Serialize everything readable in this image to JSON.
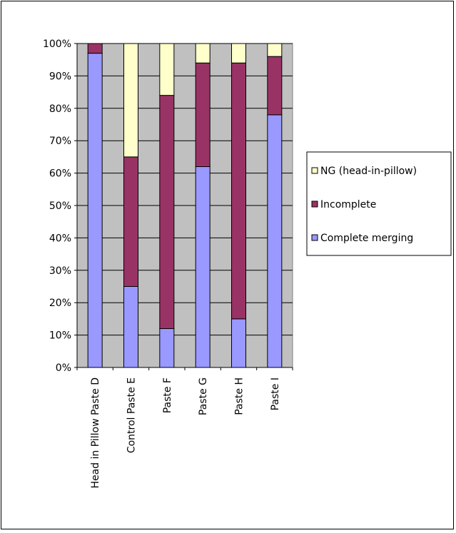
{
  "chart_data": {
    "type": "bar",
    "stacked": true,
    "percent_stacked": true,
    "title": "",
    "xlabel": "",
    "ylabel": "",
    "categories": [
      "Head in Pillow Paste D",
      "Control Paste E",
      "Paste F",
      "Paste G",
      "Paste H",
      "Paste I"
    ],
    "series": [
      {
        "name": "Complete merging",
        "color": "#9999ff",
        "values": [
          97,
          25,
          12,
          62,
          15,
          78
        ]
      },
      {
        "name": "Incomplete",
        "color": "#993366",
        "values": [
          3,
          40,
          72,
          32,
          79,
          18
        ]
      },
      {
        "name": "NG (head-in-pillow)",
        "color": "#ffffcc",
        "values": [
          0,
          35,
          16,
          6,
          6,
          4
        ]
      }
    ],
    "ylim": [
      0,
      100
    ],
    "y_ticks": [
      "0%",
      "10%",
      "20%",
      "30%",
      "40%",
      "50%",
      "60%",
      "70%",
      "80%",
      "90%",
      "100%"
    ],
    "grid": true,
    "plot_background": "#c0c0c0",
    "legend_position": "right",
    "legend_order": [
      "NG (head-in-pillow)",
      "Incomplete",
      "Complete merging"
    ]
  }
}
